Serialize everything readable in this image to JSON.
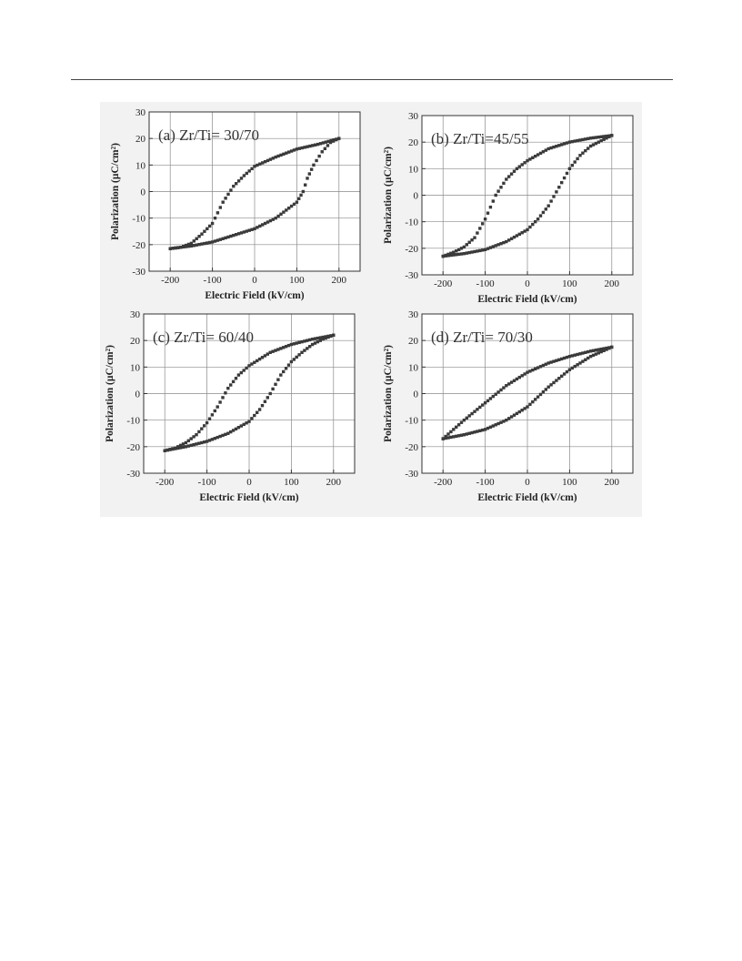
{
  "chart_data": [
    {
      "type": "scatter",
      "panel_label": "(a) Zr/Ti= 30/70",
      "xlabel": "Electric Field (kV/cm)",
      "ylabel": "Polarization (µC/cm²)",
      "xlim": [
        -250,
        250
      ],
      "ylim": [
        -30,
        30
      ],
      "xticks": [
        -200,
        -100,
        0,
        100,
        200
      ],
      "yticks": [
        -30,
        -20,
        -10,
        0,
        10,
        20,
        30
      ],
      "grid": true,
      "series": [
        {
          "values": [
            [
              200,
              20
            ],
            [
              150,
              17.8
            ],
            [
              100,
              16
            ],
            [
              50,
              13
            ],
            [
              0,
              9.5
            ],
            [
              -25,
              6
            ],
            [
              -50,
              2
            ],
            [
              -75,
              -4
            ],
            [
              -100,
              -12
            ],
            [
              -125,
              -16
            ],
            [
              -150,
              -19.5
            ],
            [
              -175,
              -21
            ],
            [
              -200,
              -21.5
            ]
          ]
        },
        {
          "values": [
            [
              -200,
              -21.5
            ],
            [
              -150,
              -20.5
            ],
            [
              -100,
              -19
            ],
            [
              -50,
              -16.5
            ],
            [
              0,
              -14
            ],
            [
              50,
              -10
            ],
            [
              100,
              -4
            ],
            [
              115,
              0
            ],
            [
              125,
              5
            ],
            [
              140,
              10
            ],
            [
              160,
              15
            ],
            [
              180,
              18.5
            ],
            [
              200,
              20
            ]
          ]
        }
      ]
    },
    {
      "type": "scatter",
      "panel_label": "(b) Zr/Ti=45/55",
      "xlabel": "Electric Field (kV/cm)",
      "ylabel": "Polarization (µC/cm²)",
      "xlim": [
        -250,
        250
      ],
      "ylim": [
        -30,
        30
      ],
      "xticks": [
        -200,
        -100,
        0,
        100,
        200
      ],
      "yticks": [
        -30,
        -20,
        -10,
        0,
        10,
        20,
        30
      ],
      "grid": true,
      "series": [
        {
          "values": [
            [
              200,
              22.5
            ],
            [
              150,
              21.5
            ],
            [
              100,
              20
            ],
            [
              50,
              17.5
            ],
            [
              0,
              13
            ],
            [
              -25,
              10
            ],
            [
              -50,
              6
            ],
            [
              -75,
              0
            ],
            [
              -100,
              -9
            ],
            [
              -125,
              -16
            ],
            [
              -150,
              -19.5
            ],
            [
              -175,
              -21.5
            ],
            [
              -200,
              -23
            ]
          ]
        },
        {
          "values": [
            [
              -200,
              -23
            ],
            [
              -150,
              -22
            ],
            [
              -100,
              -20.5
            ],
            [
              -50,
              -17.5
            ],
            [
              0,
              -13
            ],
            [
              25,
              -9
            ],
            [
              50,
              -4
            ],
            [
              75,
              3
            ],
            [
              100,
              10
            ],
            [
              125,
              15
            ],
            [
              150,
              18.5
            ],
            [
              175,
              20.5
            ],
            [
              200,
              22.5
            ]
          ]
        }
      ]
    },
    {
      "type": "scatter",
      "panel_label": "(c) Zr/Ti= 60/40",
      "xlabel": "Electric Field (kV/cm)",
      "ylabel": "Polarization (µC/cm²)",
      "xlim": [
        -250,
        250
      ],
      "ylim": [
        -30,
        30
      ],
      "xticks": [
        -200,
        -100,
        0,
        100,
        200
      ],
      "yticks": [
        -30,
        -20,
        -10,
        0,
        10,
        20,
        30
      ],
      "grid": true,
      "series": [
        {
          "values": [
            [
              200,
              22
            ],
            [
              150,
              20.5
            ],
            [
              100,
              18.5
            ],
            [
              50,
              15.5
            ],
            [
              0,
              10.5
            ],
            [
              -25,
              7
            ],
            [
              -50,
              2
            ],
            [
              -75,
              -5
            ],
            [
              -100,
              -11
            ],
            [
              -125,
              -15.5
            ],
            [
              -150,
              -18.5
            ],
            [
              -175,
              -20.5
            ],
            [
              -200,
              -21.5
            ]
          ]
        },
        {
          "values": [
            [
              -200,
              -21.5
            ],
            [
              -150,
              -20
            ],
            [
              -100,
              -18
            ],
            [
              -50,
              -15
            ],
            [
              0,
              -10.5
            ],
            [
              25,
              -6
            ],
            [
              50,
              0
            ],
            [
              75,
              7
            ],
            [
              100,
              12
            ],
            [
              125,
              15.5
            ],
            [
              150,
              18.5
            ],
            [
              175,
              20.5
            ],
            [
              200,
              22
            ]
          ]
        }
      ]
    },
    {
      "type": "scatter",
      "panel_label": "(d) Zr/Ti= 70/30",
      "xlabel": "Electric Field (kV/cm)",
      "ylabel": "Polarization (µC/cm²)",
      "xlim": [
        -250,
        250
      ],
      "ylim": [
        -30,
        30
      ],
      "xticks": [
        -200,
        -100,
        0,
        100,
        200
      ],
      "yticks": [
        -30,
        -20,
        -10,
        0,
        10,
        20,
        30
      ],
      "grid": true,
      "series": [
        {
          "values": [
            [
              200,
              17.5
            ],
            [
              150,
              16
            ],
            [
              100,
              14
            ],
            [
              50,
              11.5
            ],
            [
              0,
              8
            ],
            [
              -50,
              3
            ],
            [
              -100,
              -3.5
            ],
            [
              -150,
              -10
            ],
            [
              -200,
              -17
            ]
          ]
        },
        {
          "values": [
            [
              -200,
              -17
            ],
            [
              -150,
              -15.5
            ],
            [
              -100,
              -13.5
            ],
            [
              -50,
              -10
            ],
            [
              0,
              -5
            ],
            [
              50,
              2.5
            ],
            [
              100,
              9
            ],
            [
              150,
              14
            ],
            [
              200,
              17.5
            ]
          ]
        }
      ]
    }
  ]
}
